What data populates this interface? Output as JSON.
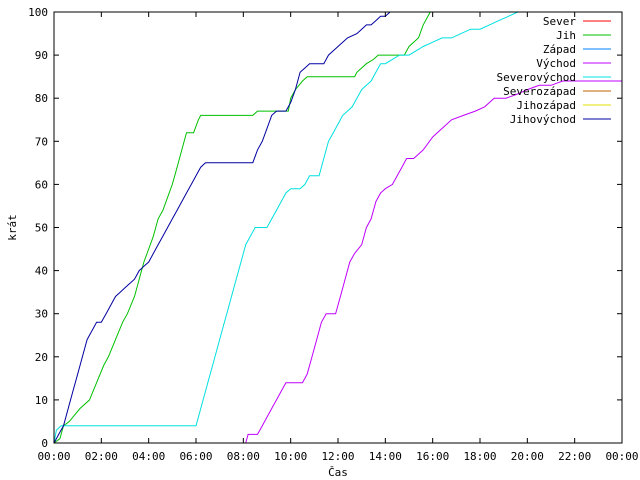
{
  "chart_data": {
    "type": "line",
    "xlabel": "Čas",
    "ylabel": "krát",
    "x_unit": "hours",
    "xlim": [
      0,
      24
    ],
    "ylim": [
      0,
      100
    ],
    "x_tick_values": [
      0,
      2,
      4,
      6,
      8,
      10,
      12,
      14,
      16,
      18,
      20,
      22,
      24
    ],
    "x_tick_labels": [
      "00:00",
      "02:00",
      "04:00",
      "06:00",
      "08:00",
      "10:00",
      "12:00",
      "14:00",
      "16:00",
      "18:00",
      "20:00",
      "22:00",
      "00:00"
    ],
    "y_ticks": [
      0,
      10,
      20,
      30,
      40,
      50,
      60,
      70,
      80,
      90,
      100
    ],
    "grid": false,
    "legend_position": "top-right",
    "series": [
      {
        "name": "Sever",
        "color": "#ff0000",
        "points": []
      },
      {
        "name": "Jih",
        "color": "#00c000",
        "points": [
          [
            0.0,
            0
          ],
          [
            0.25,
            1
          ],
          [
            0.4,
            4
          ],
          [
            0.65,
            5
          ],
          [
            0.8,
            6
          ],
          [
            1.1,
            8
          ],
          [
            1.5,
            10
          ],
          [
            1.8,
            14
          ],
          [
            2.1,
            18
          ],
          [
            2.3,
            20
          ],
          [
            2.6,
            24
          ],
          [
            2.9,
            28
          ],
          [
            3.1,
            30
          ],
          [
            3.4,
            34
          ],
          [
            3.6,
            38
          ],
          [
            3.8,
            42
          ],
          [
            4.0,
            45
          ],
          [
            4.2,
            48
          ],
          [
            4.4,
            52
          ],
          [
            4.6,
            54
          ],
          [
            4.8,
            57
          ],
          [
            5.0,
            60
          ],
          [
            5.2,
            64
          ],
          [
            5.4,
            68
          ],
          [
            5.6,
            72
          ],
          [
            5.9,
            72
          ],
          [
            6.1,
            75
          ],
          [
            6.2,
            76
          ],
          [
            8.4,
            76
          ],
          [
            8.6,
            77
          ],
          [
            9.9,
            77
          ],
          [
            10.0,
            80
          ],
          [
            10.2,
            82
          ],
          [
            10.5,
            84
          ],
          [
            10.7,
            85
          ],
          [
            12.7,
            85
          ],
          [
            12.8,
            86
          ],
          [
            13.2,
            88
          ],
          [
            13.5,
            89
          ],
          [
            13.7,
            90
          ],
          [
            14.8,
            90
          ],
          [
            15.0,
            92
          ],
          [
            15.4,
            94
          ],
          [
            15.6,
            97
          ],
          [
            15.8,
            99
          ],
          [
            15.9,
            100
          ]
        ]
      },
      {
        "name": "Západ",
        "color": "#0080ff",
        "points": []
      },
      {
        "name": "Východ",
        "color": "#c000ff",
        "points": [
          [
            8.1,
            0
          ],
          [
            8.2,
            2
          ],
          [
            8.6,
            2
          ],
          [
            8.8,
            4
          ],
          [
            9.0,
            6
          ],
          [
            9.2,
            8
          ],
          [
            9.4,
            10
          ],
          [
            9.6,
            12
          ],
          [
            9.8,
            14
          ],
          [
            10.5,
            14
          ],
          [
            10.7,
            16
          ],
          [
            10.9,
            20
          ],
          [
            11.1,
            24
          ],
          [
            11.3,
            28
          ],
          [
            11.5,
            30
          ],
          [
            11.9,
            30
          ],
          [
            12.1,
            34
          ],
          [
            12.3,
            38
          ],
          [
            12.5,
            42
          ],
          [
            12.7,
            44
          ],
          [
            13.0,
            46
          ],
          [
            13.2,
            50
          ],
          [
            13.4,
            52
          ],
          [
            13.6,
            56
          ],
          [
            13.8,
            58
          ],
          [
            14.0,
            59
          ],
          [
            14.3,
            60
          ],
          [
            14.5,
            62
          ],
          [
            14.7,
            64
          ],
          [
            14.9,
            66
          ],
          [
            15.2,
            66
          ],
          [
            15.6,
            68
          ],
          [
            16.0,
            71
          ],
          [
            16.4,
            73
          ],
          [
            16.8,
            75
          ],
          [
            17.3,
            76
          ],
          [
            17.8,
            77
          ],
          [
            18.2,
            78
          ],
          [
            18.6,
            80
          ],
          [
            19.1,
            80
          ],
          [
            19.6,
            81
          ],
          [
            20.0,
            82
          ],
          [
            20.5,
            83
          ],
          [
            21.0,
            83
          ],
          [
            21.5,
            84
          ],
          [
            22.0,
            84
          ],
          [
            22.5,
            84
          ],
          [
            23.0,
            84
          ],
          [
            23.5,
            84
          ],
          [
            24.0,
            84
          ]
        ]
      },
      {
        "name": "Severovýchod",
        "color": "#00e0e0",
        "points": [
          [
            0.0,
            0
          ],
          [
            0.1,
            3
          ],
          [
            0.3,
            4
          ],
          [
            6.0,
            4
          ],
          [
            6.1,
            6
          ],
          [
            6.3,
            10
          ],
          [
            6.5,
            14
          ],
          [
            6.7,
            18
          ],
          [
            6.9,
            22
          ],
          [
            7.1,
            26
          ],
          [
            7.3,
            30
          ],
          [
            7.5,
            34
          ],
          [
            7.7,
            38
          ],
          [
            7.9,
            42
          ],
          [
            8.1,
            46
          ],
          [
            8.3,
            48
          ],
          [
            8.5,
            50
          ],
          [
            9.0,
            50
          ],
          [
            9.2,
            52
          ],
          [
            9.4,
            54
          ],
          [
            9.6,
            56
          ],
          [
            9.8,
            58
          ],
          [
            10.0,
            59
          ],
          [
            10.4,
            59
          ],
          [
            10.6,
            60
          ],
          [
            10.8,
            62
          ],
          [
            11.2,
            62
          ],
          [
            11.4,
            66
          ],
          [
            11.6,
            70
          ],
          [
            11.8,
            72
          ],
          [
            12.0,
            74
          ],
          [
            12.2,
            76
          ],
          [
            12.4,
            77
          ],
          [
            12.6,
            78
          ],
          [
            12.8,
            80
          ],
          [
            13.0,
            82
          ],
          [
            13.2,
            83
          ],
          [
            13.4,
            84
          ],
          [
            13.6,
            86
          ],
          [
            13.8,
            88
          ],
          [
            14.0,
            88
          ],
          [
            14.3,
            89
          ],
          [
            14.6,
            90
          ],
          [
            15.0,
            90
          ],
          [
            15.3,
            91
          ],
          [
            15.6,
            92
          ],
          [
            16.0,
            93
          ],
          [
            16.4,
            94
          ],
          [
            16.8,
            94
          ],
          [
            17.2,
            95
          ],
          [
            17.6,
            96
          ],
          [
            18.0,
            96
          ],
          [
            18.4,
            97
          ],
          [
            18.8,
            98
          ],
          [
            19.2,
            99
          ],
          [
            19.6,
            100
          ]
        ]
      },
      {
        "name": "Severozápad",
        "color": "#c06000",
        "points": []
      },
      {
        "name": "Jihozápad",
        "color": "#e0e000",
        "points": []
      },
      {
        "name": "Jihovýchod",
        "color": "#0000a0",
        "points": [
          [
            0.0,
            0
          ],
          [
            0.2,
            2
          ],
          [
            0.4,
            4
          ],
          [
            0.6,
            8
          ],
          [
            0.8,
            12
          ],
          [
            1.0,
            16
          ],
          [
            1.2,
            20
          ],
          [
            1.4,
            24
          ],
          [
            1.6,
            26
          ],
          [
            1.8,
            28
          ],
          [
            2.0,
            28
          ],
          [
            2.2,
            30
          ],
          [
            2.4,
            32
          ],
          [
            2.6,
            34
          ],
          [
            2.8,
            35
          ],
          [
            3.0,
            36
          ],
          [
            3.2,
            37
          ],
          [
            3.4,
            38
          ],
          [
            3.6,
            40
          ],
          [
            3.8,
            41
          ],
          [
            4.0,
            42
          ],
          [
            4.2,
            44
          ],
          [
            4.4,
            46
          ],
          [
            4.6,
            48
          ],
          [
            4.8,
            50
          ],
          [
            5.0,
            52
          ],
          [
            5.2,
            54
          ],
          [
            5.4,
            56
          ],
          [
            5.6,
            58
          ],
          [
            5.8,
            60
          ],
          [
            6.0,
            62
          ],
          [
            6.2,
            64
          ],
          [
            6.4,
            65
          ],
          [
            8.4,
            65
          ],
          [
            8.6,
            68
          ],
          [
            8.8,
            70
          ],
          [
            9.0,
            73
          ],
          [
            9.2,
            76
          ],
          [
            9.4,
            77
          ],
          [
            9.8,
            77
          ],
          [
            10.0,
            79
          ],
          [
            10.2,
            82
          ],
          [
            10.4,
            86
          ],
          [
            10.6,
            87
          ],
          [
            10.8,
            88
          ],
          [
            11.4,
            88
          ],
          [
            11.6,
            90
          ],
          [
            11.8,
            91
          ],
          [
            12.0,
            92
          ],
          [
            12.4,
            94
          ],
          [
            12.8,
            95
          ],
          [
            13.0,
            96
          ],
          [
            13.2,
            97
          ],
          [
            13.4,
            97
          ],
          [
            13.6,
            98
          ],
          [
            13.8,
            99
          ],
          [
            14.0,
            99
          ],
          [
            14.2,
            100
          ]
        ]
      }
    ]
  }
}
